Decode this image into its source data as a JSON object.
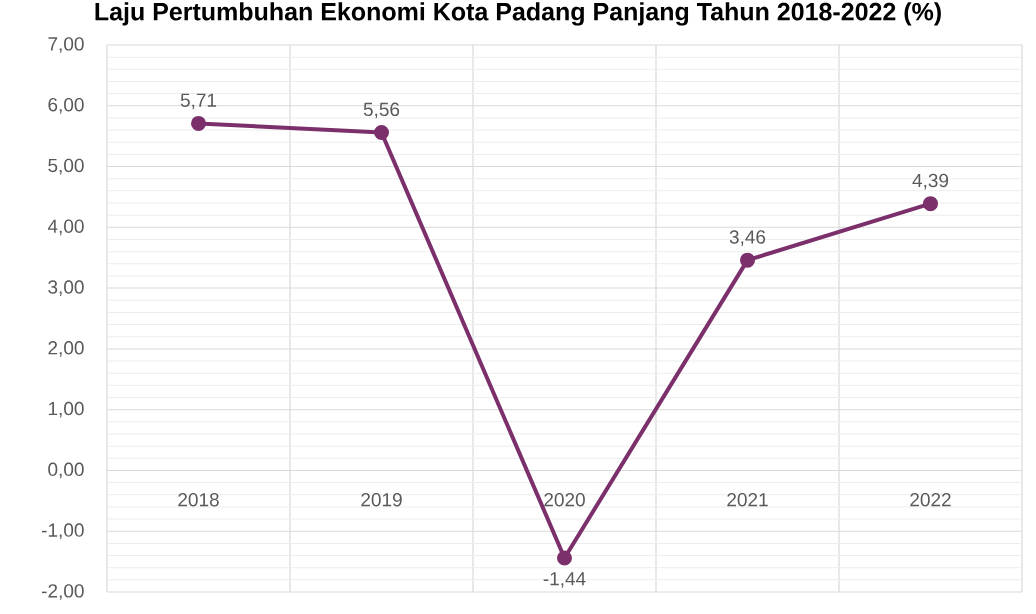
{
  "chart_data": {
    "type": "line",
    "title": "Laju Pertumbuhan Ekonomi Kota Padang Panjang Tahun 2018-2022 (%)",
    "categories": [
      "2018",
      "2019",
      "2020",
      "2021",
      "2022"
    ],
    "series": [
      {
        "color": "#7b2f6b",
        "values": [
          5.71,
          5.56,
          -1.44,
          3.46,
          4.39
        ],
        "value_labels": [
          "5,71",
          "5,56",
          "-1,44",
          "3,46",
          "4,39"
        ]
      }
    ],
    "ylim": [
      -2,
      7
    ],
    "yticks": [
      {
        "value": -2,
        "label": "-2,00"
      },
      {
        "value": -1,
        "label": "-1,00"
      },
      {
        "value": 0,
        "label": "0,00"
      },
      {
        "value": 1,
        "label": "1,00"
      },
      {
        "value": 2,
        "label": "2,00"
      },
      {
        "value": 3,
        "label": "3,00"
      },
      {
        "value": 4,
        "label": "4,00"
      },
      {
        "value": 5,
        "label": "5,00"
      },
      {
        "value": 6,
        "label": "6,00"
      },
      {
        "value": 7,
        "label": "7,00"
      }
    ],
    "grid": true,
    "marker": "circle",
    "line_style": "solid"
  }
}
